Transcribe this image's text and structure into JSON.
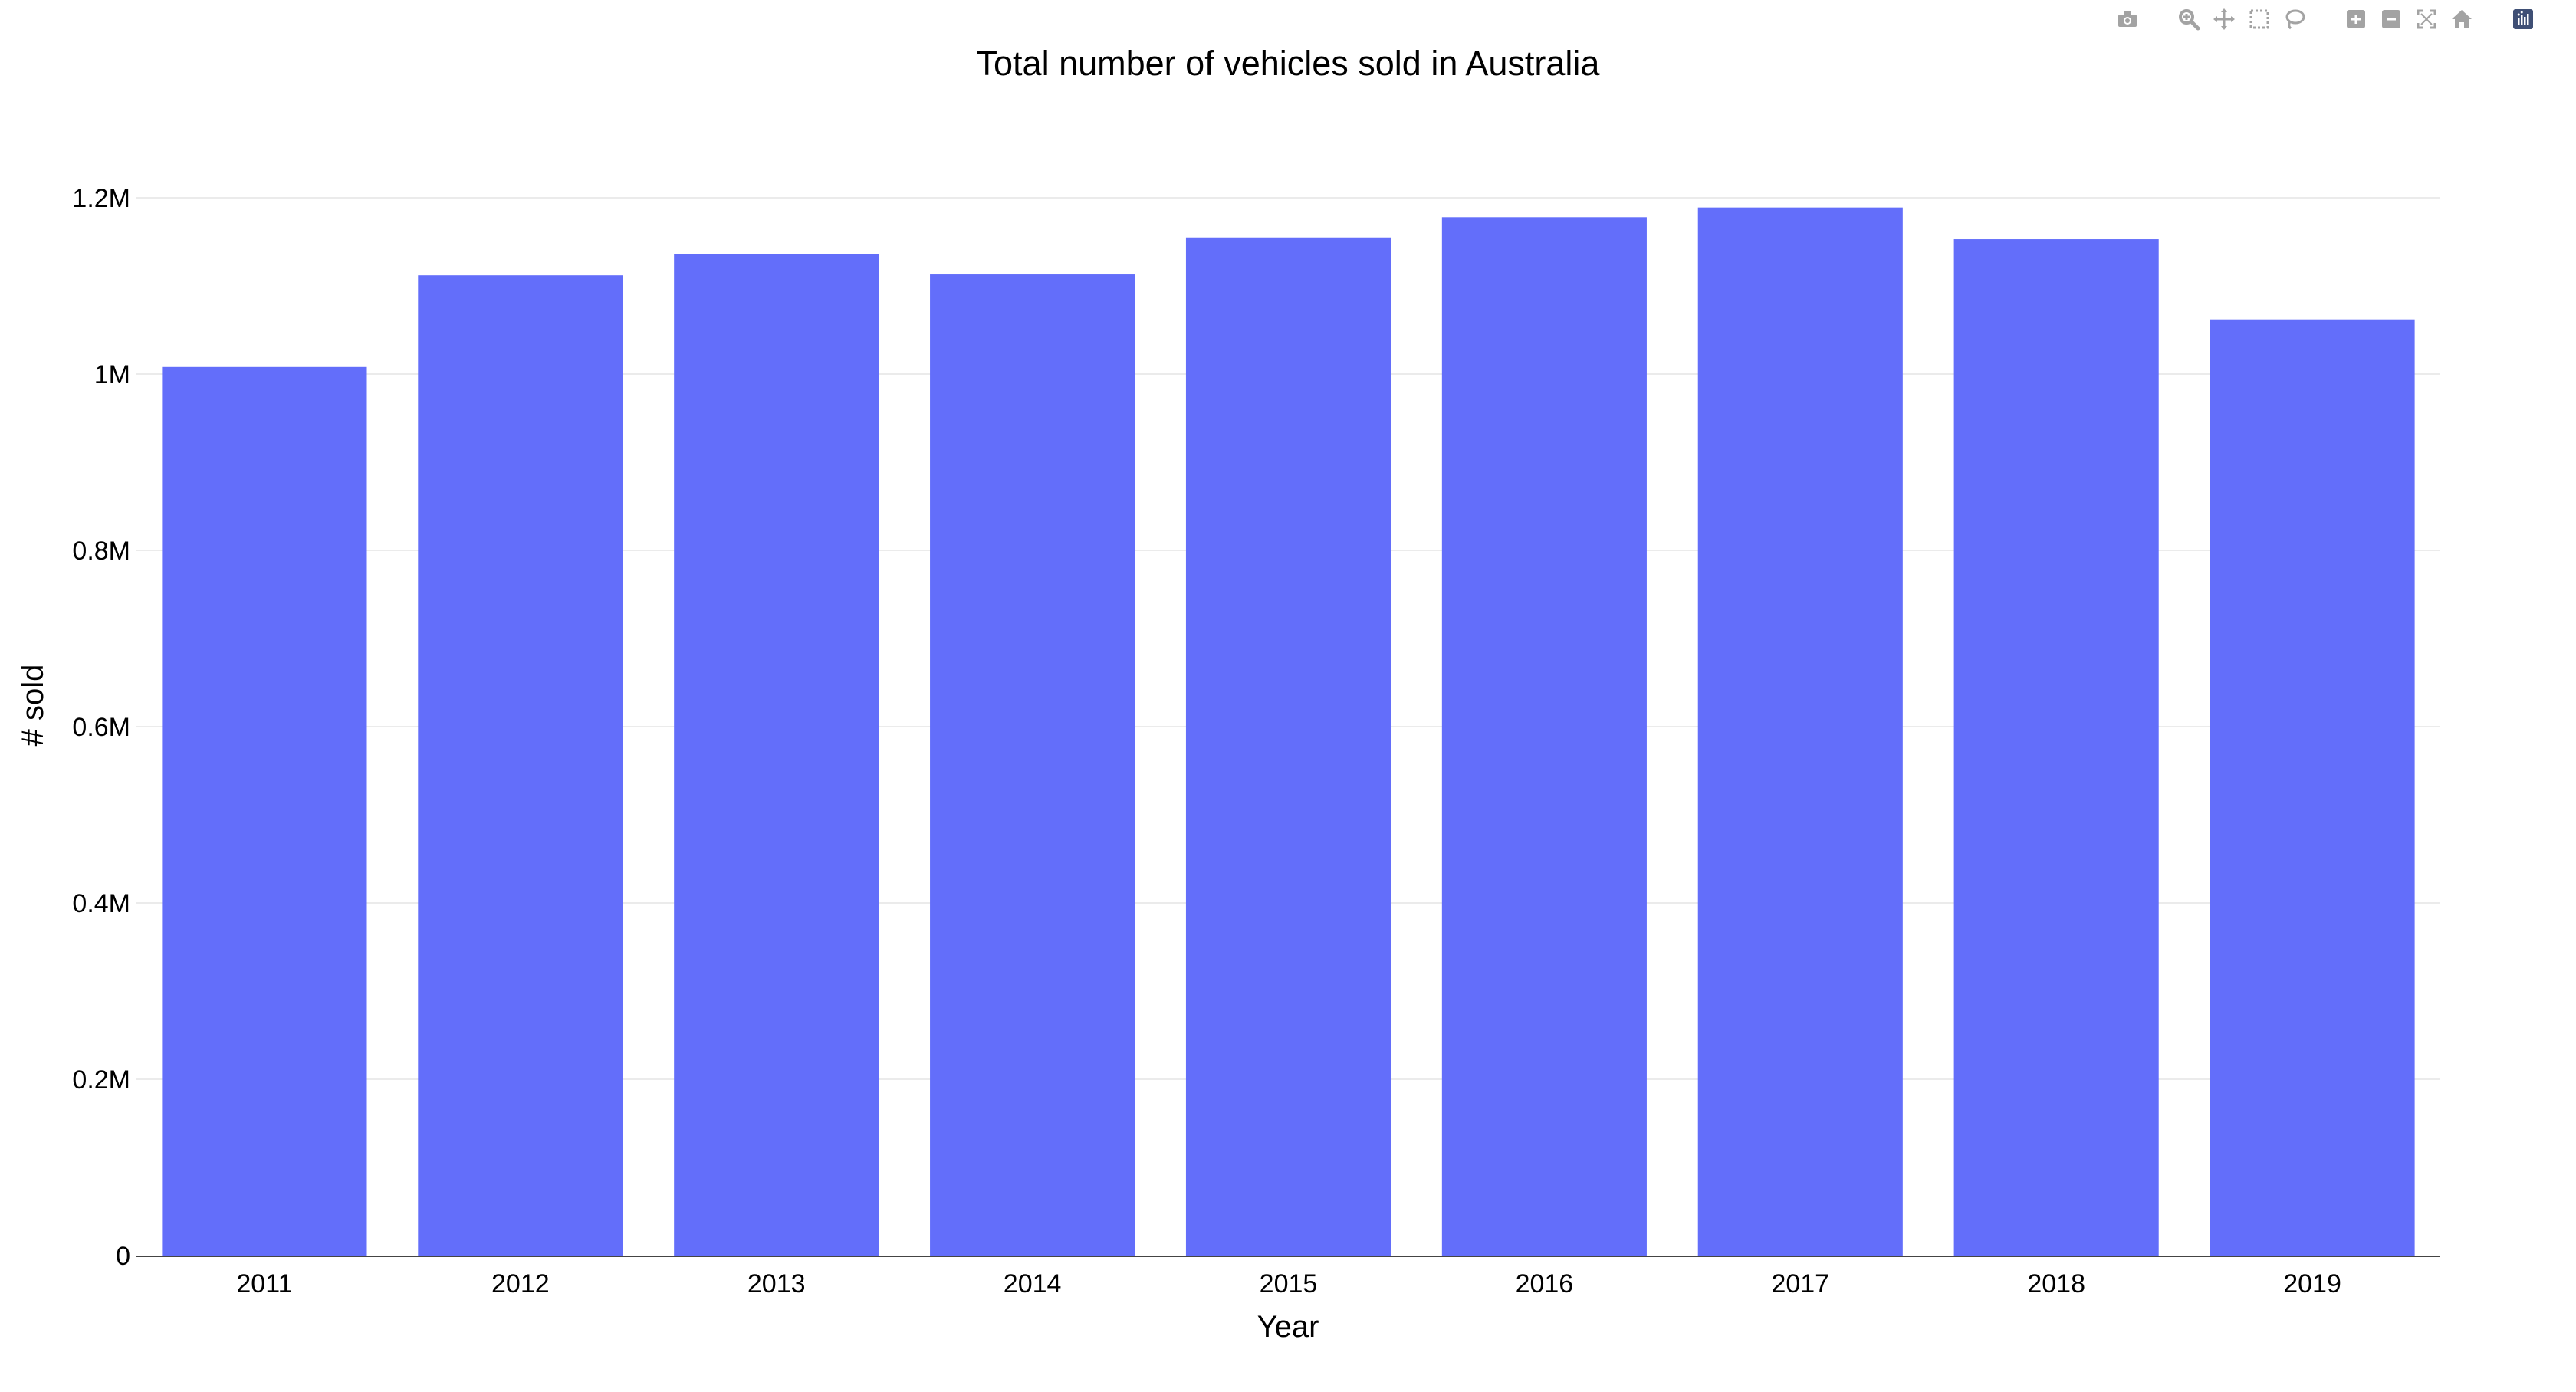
{
  "chart_data": {
    "type": "bar",
    "title": "Total number of vehicles sold in Australia",
    "xlabel": "Year",
    "ylabel": "# sold",
    "categories": [
      "2011",
      "2012",
      "2013",
      "2014",
      "2015",
      "2016",
      "2017",
      "2018",
      "2019"
    ],
    "values": [
      1008000,
      1112000,
      1136000,
      1113000,
      1155000,
      1178000,
      1189000,
      1153000,
      1062000
    ],
    "ylim": [
      0,
      1200000
    ],
    "yticks": [
      {
        "value": 0,
        "label": "0"
      },
      {
        "value": 200000,
        "label": "0.2M"
      },
      {
        "value": 400000,
        "label": "0.4M"
      },
      {
        "value": 600000,
        "label": "0.6M"
      },
      {
        "value": 800000,
        "label": "0.8M"
      },
      {
        "value": 1000000,
        "label": "1M"
      },
      {
        "value": 1200000,
        "label": "1.2M"
      }
    ],
    "grid": true,
    "bar_color": "#636efa",
    "grid_color": "#ebebeb",
    "axis_color": "#444444"
  },
  "modebar": {
    "icon_color": "#a3a3a3",
    "logo_color": "#3f4f75",
    "groups": [
      [
        "camera-icon"
      ],
      [
        "zoom-icon",
        "pan-icon",
        "box-select-icon",
        "lasso-select-icon"
      ],
      [
        "zoom-in-icon",
        "zoom-out-icon",
        "autoscale-icon",
        "reset-axes-icon"
      ],
      [
        "plotly-logo-icon"
      ]
    ]
  }
}
